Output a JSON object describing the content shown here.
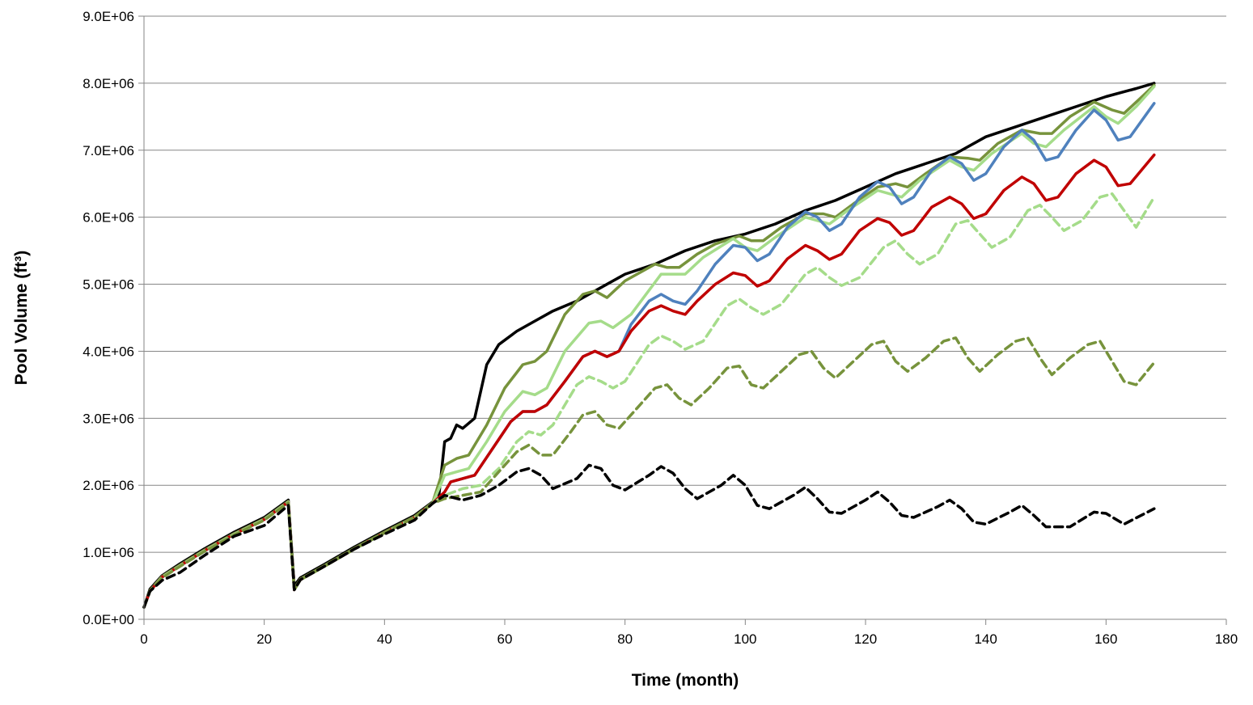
{
  "chart_data": {
    "type": "line",
    "xlabel": "Time (month)",
    "ylabel": "Pool Volume (ft³)",
    "xlim": [
      0,
      180
    ],
    "ylim": [
      0,
      9000000
    ],
    "x_ticks": [
      0,
      20,
      40,
      60,
      80,
      100,
      120,
      140,
      160,
      180
    ],
    "x_tick_labels": [
      "0",
      "20",
      "40",
      "60",
      "80",
      "100",
      "120",
      "140",
      "160",
      "180"
    ],
    "y_ticks": [
      0,
      1000000,
      2000000,
      3000000,
      4000000,
      5000000,
      6000000,
      7000000,
      8000000,
      9000000
    ],
    "y_tick_labels": [
      "0.0E+00",
      "1.0E+06",
      "2.0E+06",
      "3.0E+06",
      "4.0E+06",
      "5.0E+06",
      "6.0E+06",
      "7.0E+06",
      "8.0E+06",
      "9.0E+06"
    ],
    "grid": "horizontal",
    "legend": "none",
    "series": [
      {
        "color": "#000000",
        "style": "solid",
        "x": [
          0,
          1,
          3,
          6,
          10,
          15,
          20,
          24,
          25,
          26,
          30,
          35,
          40,
          45,
          48,
          49,
          50,
          51,
          52,
          53,
          55,
          57,
          59,
          62,
          65,
          68,
          72,
          76,
          80,
          85,
          90,
          95,
          100,
          105,
          110,
          115,
          120,
          125,
          130,
          135,
          140,
          145,
          150,
          155,
          160,
          165,
          168
        ],
        "y": [
          180000,
          450000,
          650000,
          830000,
          1050000,
          1300000,
          1520000,
          1780000,
          500000,
          620000,
          820000,
          1080000,
          1320000,
          1550000,
          1750000,
          1800000,
          2650000,
          2700000,
          2900000,
          2850000,
          3000000,
          3800000,
          4100000,
          4300000,
          4450000,
          4600000,
          4750000,
          4950000,
          5150000,
          5300000,
          5500000,
          5650000,
          5750000,
          5900000,
          6100000,
          6250000,
          6450000,
          6650000,
          6800000,
          6950000,
          7200000,
          7350000,
          7500000,
          7650000,
          7800000,
          7920000,
          8000000
        ]
      },
      {
        "color": "#77933c",
        "style": "solid",
        "x": [
          0,
          1,
          3,
          6,
          10,
          15,
          20,
          24,
          25,
          26,
          30,
          35,
          40,
          45,
          48,
          50,
          52,
          54,
          57,
          60,
          63,
          65,
          67,
          70,
          73,
          75,
          77,
          80,
          85,
          87,
          89,
          92,
          95,
          99,
          101,
          103,
          106,
          110,
          113,
          115,
          118,
          122,
          125,
          127,
          130,
          134,
          137,
          139,
          142,
          146,
          149,
          151,
          154,
          158,
          161,
          163,
          166,
          168
        ],
        "y": [
          180000,
          430000,
          640000,
          810000,
          1030000,
          1280000,
          1500000,
          1760000,
          450000,
          600000,
          800000,
          1060000,
          1300000,
          1530000,
          1740000,
          2300000,
          2400000,
          2450000,
          2900000,
          3450000,
          3800000,
          3850000,
          4000000,
          4550000,
          4850000,
          4900000,
          4800000,
          5050000,
          5300000,
          5250000,
          5250000,
          5450000,
          5600000,
          5720000,
          5650000,
          5650000,
          5850000,
          6050000,
          6050000,
          6000000,
          6200000,
          6450000,
          6500000,
          6450000,
          6650000,
          6900000,
          6880000,
          6850000,
          7100000,
          7300000,
          7250000,
          7250000,
          7500000,
          7720000,
          7600000,
          7550000,
          7800000,
          7970000
        ]
      },
      {
        "color": "#a5dc8a",
        "style": "solid",
        "x": [
          0,
          1,
          3,
          6,
          10,
          15,
          20,
          24,
          25,
          26,
          30,
          35,
          40,
          45,
          48,
          50,
          52,
          54,
          57,
          60,
          63,
          65,
          67,
          70,
          74,
          76,
          78,
          81,
          86,
          88,
          90,
          93,
          98,
          100,
          102,
          105,
          110,
          112,
          114,
          117,
          122,
          124,
          126,
          129,
          134,
          136,
          138,
          141,
          146,
          148,
          150,
          153,
          158,
          160,
          162,
          165,
          168
        ],
        "y": [
          180000,
          420000,
          630000,
          800000,
          1020000,
          1270000,
          1490000,
          1750000,
          440000,
          590000,
          790000,
          1050000,
          1290000,
          1520000,
          1730000,
          2150000,
          2200000,
          2250000,
          2650000,
          3100000,
          3400000,
          3350000,
          3450000,
          4000000,
          4420000,
          4450000,
          4350000,
          4550000,
          5150000,
          5150000,
          5150000,
          5400000,
          5680000,
          5550000,
          5500000,
          5700000,
          6000000,
          5950000,
          5900000,
          6100000,
          6400000,
          6350000,
          6300000,
          6550000,
          6850000,
          6750000,
          6700000,
          6950000,
          7250000,
          7100000,
          7050000,
          7300000,
          7650000,
          7500000,
          7400000,
          7650000,
          7950000
        ]
      },
      {
        "color": "#4f81bd",
        "style": "solid",
        "x": [
          0,
          1,
          3,
          6,
          10,
          15,
          20,
          24,
          25,
          26,
          30,
          35,
          40,
          45,
          48,
          50,
          51,
          53,
          55,
          58,
          61,
          63,
          65,
          67,
          70,
          73,
          75,
          77,
          79,
          81,
          84,
          86,
          88,
          90,
          92,
          95,
          98,
          100,
          102,
          104,
          107,
          110,
          112,
          114,
          116,
          119,
          122,
          124,
          126,
          128,
          131,
          134,
          136,
          138,
          140,
          143,
          146,
          148,
          150,
          152,
          155,
          158,
          160,
          162,
          164,
          168
        ],
        "y": [
          180000,
          420000,
          630000,
          800000,
          1020000,
          1270000,
          1490000,
          1750000,
          440000,
          590000,
          790000,
          1050000,
          1290000,
          1520000,
          1730000,
          1900000,
          2050000,
          2100000,
          2150000,
          2550000,
          2950000,
          3100000,
          3100000,
          3200000,
          3550000,
          3920000,
          4000000,
          3920000,
          4000000,
          4400000,
          4750000,
          4850000,
          4750000,
          4700000,
          4900000,
          5300000,
          5580000,
          5550000,
          5350000,
          5450000,
          5850000,
          6080000,
          6000000,
          5800000,
          5900000,
          6300000,
          6530000,
          6450000,
          6200000,
          6300000,
          6700000,
          6900000,
          6800000,
          6550000,
          6650000,
          7050000,
          7300000,
          7150000,
          6850000,
          6900000,
          7300000,
          7600000,
          7450000,
          7150000,
          7200000,
          7700000
        ]
      },
      {
        "color": "#c00000",
        "style": "solid",
        "x": [
          0,
          1,
          3,
          6,
          10,
          15,
          20,
          24,
          25,
          26,
          30,
          35,
          40,
          45,
          48,
          50,
          51,
          53,
          55,
          58,
          61,
          63,
          65,
          67,
          70,
          73,
          75,
          77,
          79,
          81,
          84,
          86,
          88,
          90,
          92,
          95,
          98,
          100,
          102,
          104,
          107,
          110,
          112,
          114,
          116,
          119,
          122,
          124,
          126,
          128,
          131,
          134,
          136,
          138,
          140,
          143,
          146,
          148,
          150,
          152,
          155,
          158,
          160,
          162,
          164,
          168
        ],
        "y": [
          180000,
          420000,
          630000,
          800000,
          1020000,
          1270000,
          1490000,
          1750000,
          440000,
          590000,
          790000,
          1050000,
          1290000,
          1520000,
          1730000,
          1900000,
          2050000,
          2100000,
          2150000,
          2550000,
          2950000,
          3100000,
          3100000,
          3200000,
          3550000,
          3920000,
          4000000,
          3920000,
          4000000,
          4300000,
          4600000,
          4680000,
          4600000,
          4550000,
          4750000,
          5000000,
          5170000,
          5130000,
          4970000,
          5050000,
          5380000,
          5580000,
          5500000,
          5370000,
          5450000,
          5800000,
          5980000,
          5920000,
          5730000,
          5800000,
          6150000,
          6300000,
          6200000,
          5980000,
          6050000,
          6400000,
          6600000,
          6500000,
          6250000,
          6300000,
          6650000,
          6850000,
          6750000,
          6470000,
          6500000,
          6930000
        ]
      },
      {
        "color": "#a5dc8a",
        "style": "dashed",
        "x": [
          0,
          1,
          3,
          6,
          10,
          15,
          20,
          24,
          25,
          26,
          30,
          35,
          40,
          45,
          48,
          50,
          53,
          56,
          59,
          62,
          64,
          66,
          68,
          72,
          74,
          76,
          78,
          80,
          84,
          86,
          88,
          90,
          93,
          97,
          99,
          101,
          103,
          106,
          110,
          112,
          114,
          116,
          119,
          123,
          125,
          127,
          129,
          132,
          135,
          137,
          139,
          141,
          144,
          147,
          149,
          151,
          153,
          156,
          159,
          161,
          163,
          165,
          168
        ],
        "y": [
          180000,
          420000,
          630000,
          800000,
          1020000,
          1270000,
          1490000,
          1750000,
          440000,
          590000,
          790000,
          1050000,
          1290000,
          1520000,
          1730000,
          1850000,
          1950000,
          2000000,
          2250000,
          2650000,
          2800000,
          2750000,
          2900000,
          3500000,
          3620000,
          3550000,
          3450000,
          3550000,
          4100000,
          4230000,
          4150000,
          4030000,
          4150000,
          4680000,
          4780000,
          4650000,
          4550000,
          4700000,
          5150000,
          5250000,
          5100000,
          4980000,
          5100000,
          5550000,
          5650000,
          5450000,
          5300000,
          5450000,
          5900000,
          5950000,
          5750000,
          5550000,
          5700000,
          6100000,
          6180000,
          6000000,
          5800000,
          5950000,
          6300000,
          6350000,
          6100000,
          5850000,
          6300000
        ]
      },
      {
        "color": "#77933c",
        "style": "dashed",
        "x": [
          0,
          1,
          3,
          6,
          10,
          15,
          20,
          24,
          25,
          26,
          30,
          35,
          40,
          45,
          48,
          50,
          53,
          56,
          59,
          62,
          64,
          66,
          68,
          71,
          73,
          75,
          77,
          79,
          82,
          85,
          87,
          89,
          91,
          94,
          97,
          99,
          101,
          103,
          106,
          109,
          111,
          113,
          115,
          118,
          121,
          123,
          125,
          127,
          130,
          133,
          135,
          137,
          139,
          142,
          145,
          147,
          149,
          151,
          154,
          157,
          159,
          161,
          163,
          165,
          168
        ],
        "y": [
          180000,
          420000,
          620000,
          790000,
          1010000,
          1260000,
          1480000,
          1740000,
          440000,
          590000,
          790000,
          1050000,
          1290000,
          1520000,
          1730000,
          1800000,
          1850000,
          1900000,
          2200000,
          2500000,
          2600000,
          2450000,
          2450000,
          2800000,
          3050000,
          3100000,
          2900000,
          2850000,
          3150000,
          3450000,
          3500000,
          3300000,
          3200000,
          3450000,
          3750000,
          3780000,
          3500000,
          3450000,
          3700000,
          3950000,
          4000000,
          3750000,
          3600000,
          3850000,
          4100000,
          4150000,
          3850000,
          3700000,
          3900000,
          4150000,
          4200000,
          3900000,
          3700000,
          3950000,
          4150000,
          4200000,
          3900000,
          3650000,
          3900000,
          4100000,
          4150000,
          3850000,
          3550000,
          3500000,
          3830000
        ]
      },
      {
        "color": "#000000",
        "style": "dashed",
        "x": [
          0,
          1,
          3,
          6,
          10,
          15,
          20,
          24,
          25,
          26,
          30,
          35,
          40,
          45,
          48,
          50,
          53,
          56,
          59,
          62,
          64,
          66,
          68,
          72,
          74,
          76,
          78,
          80,
          84,
          86,
          88,
          90,
          92,
          96,
          98,
          100,
          102,
          104,
          108,
          110,
          112,
          114,
          116,
          120,
          122,
          124,
          126,
          128,
          132,
          134,
          136,
          138,
          140,
          144,
          146,
          148,
          150,
          154,
          158,
          160,
          163,
          168
        ],
        "y": [
          180000,
          420000,
          580000,
          700000,
          950000,
          1240000,
          1400000,
          1700000,
          440000,
          590000,
          790000,
          1050000,
          1270000,
          1480000,
          1730000,
          1850000,
          1780000,
          1850000,
          2000000,
          2200000,
          2250000,
          2150000,
          1950000,
          2100000,
          2300000,
          2250000,
          2000000,
          1930000,
          2150000,
          2280000,
          2180000,
          1950000,
          1800000,
          2000000,
          2150000,
          2000000,
          1700000,
          1650000,
          1850000,
          1970000,
          1800000,
          1600000,
          1580000,
          1780000,
          1900000,
          1750000,
          1550000,
          1520000,
          1680000,
          1780000,
          1650000,
          1450000,
          1420000,
          1600000,
          1700000,
          1550000,
          1380000,
          1380000,
          1600000,
          1580000,
          1420000,
          1650000
        ]
      }
    ]
  }
}
